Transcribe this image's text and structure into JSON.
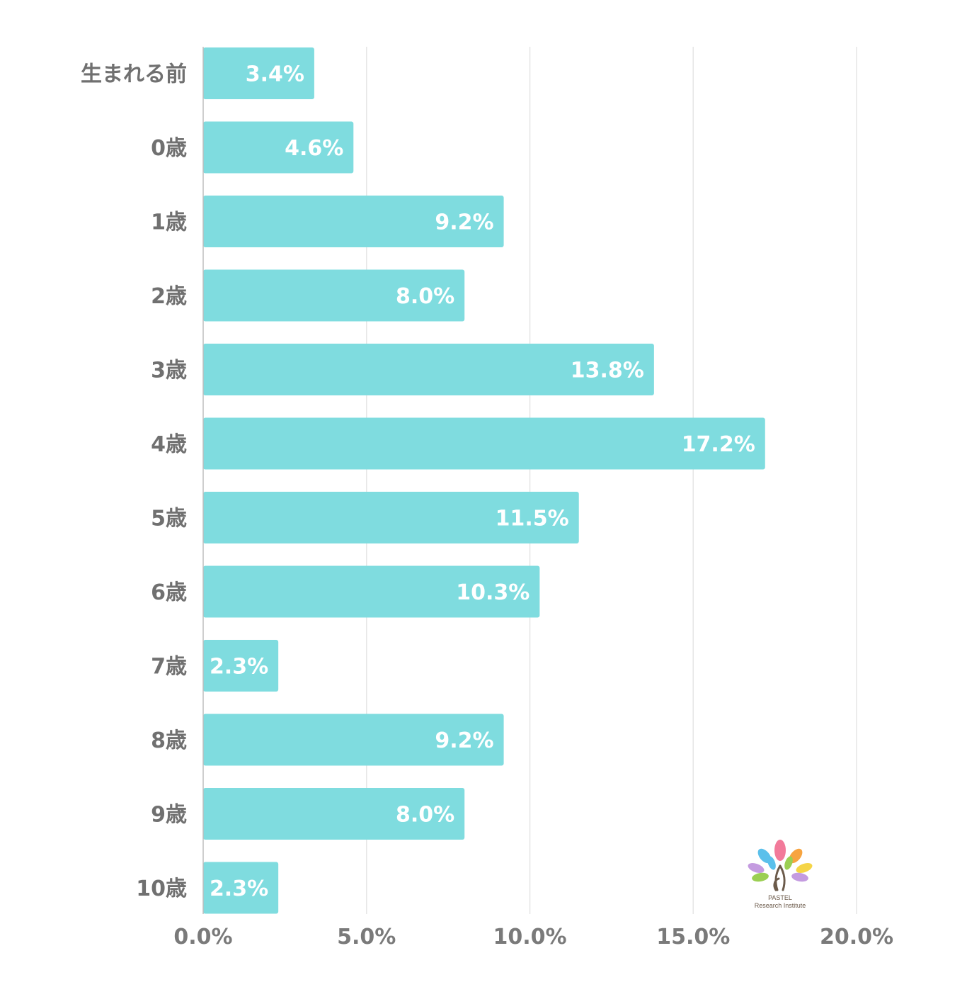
{
  "chart_data": {
    "type": "bar",
    "orientation": "horizontal",
    "categories": [
      "生まれる前",
      "0歳",
      "1歳",
      "2歳",
      "3歳",
      "4歳",
      "5歳",
      "6歳",
      "7歳",
      "8歳",
      "9歳",
      "10歳"
    ],
    "values": [
      3.4,
      4.6,
      9.2,
      8.0,
      13.8,
      17.2,
      11.5,
      10.3,
      2.3,
      9.2,
      8.0,
      2.3
    ],
    "value_labels": [
      "3.4%",
      "4.6%",
      "9.2%",
      "8.0%",
      "13.8%",
      "17.2%",
      "11.5%",
      "10.3%",
      "2.3%",
      "9.2%",
      "8.0%",
      "2.3%"
    ],
    "x_ticks": [
      0,
      5,
      10,
      15,
      20
    ],
    "x_tick_labels": [
      "0.0%",
      "5.0%",
      "10.0%",
      "15.0%",
      "20.0%"
    ],
    "xlim": [
      0,
      20
    ],
    "grid": true,
    "bar_color": "#7fdcdf",
    "title": "",
    "xlabel": "",
    "ylabel": ""
  },
  "logo": {
    "line1": "PASTEL",
    "line2": "Research Institute",
    "colors": [
      "#f27a9a",
      "#5bc0eb",
      "#f7a440",
      "#9bcf53",
      "#c49be0",
      "#f5d547"
    ]
  }
}
